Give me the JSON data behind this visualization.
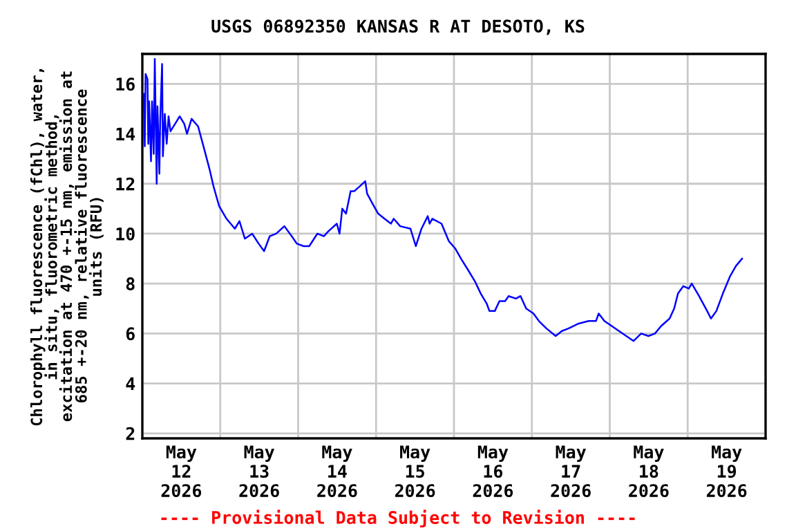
{
  "chart_data": {
    "type": "line",
    "title": "USGS 06892350 KANSAS R AT DESOTO, KS",
    "ylabel": "Chlorophyll fluorescence (fChl), water,\nin situ, fluorometric method,\nexcitation at 470 +-15 nm, emission at\n685 +-20 nm, relative fluorescence\nunits (RFU)",
    "annotations": [
      "---- Provisional Data Subject to Revision ----"
    ],
    "xlim": [
      "2026-05-12T00:00",
      "2026-05-20T00:00"
    ],
    "ylim": [
      1.8,
      17.2
    ],
    "yticks": [
      2,
      4,
      6,
      8,
      10,
      12,
      14,
      16
    ],
    "xticks": [
      {
        "value": "2026-05-12T00:00",
        "label": null
      },
      {
        "value": "2026-05-12T12:00",
        "label": "May\n12\n2026"
      },
      {
        "value": "2026-05-13T00:00",
        "label": null
      },
      {
        "value": "2026-05-13T12:00",
        "label": "May\n13\n2026"
      },
      {
        "value": "2026-05-14T00:00",
        "label": null
      },
      {
        "value": "2026-05-14T12:00",
        "label": "May\n14\n2026"
      },
      {
        "value": "2026-05-15T00:00",
        "label": null
      },
      {
        "value": "2026-05-15T12:00",
        "label": "May\n15\n2026"
      },
      {
        "value": "2026-05-16T00:00",
        "label": null
      },
      {
        "value": "2026-05-16T12:00",
        "label": "May\n16\n2026"
      },
      {
        "value": "2026-05-17T00:00",
        "label": null
      },
      {
        "value": "2026-05-17T12:00",
        "label": "May\n17\n2026"
      },
      {
        "value": "2026-05-18T00:00",
        "label": null
      },
      {
        "value": "2026-05-18T12:00",
        "label": "May\n18\n2026"
      },
      {
        "value": "2026-05-19T00:00",
        "label": null
      },
      {
        "value": "2026-05-19T12:00",
        "label": "May\n19\n2026"
      },
      {
        "value": "2026-05-20T00:00",
        "label": null
      }
    ],
    "grid": true,
    "series": [
      {
        "color": "#0000ff",
        "x": [
          "2026-05-12T00:25",
          "2026-05-12T00:45",
          "2026-05-12T01:00",
          "2026-05-12T01:35",
          "2026-05-12T01:50",
          "2026-05-12T02:05",
          "2026-05-12T02:40",
          "2026-05-12T03:00",
          "2026-05-12T03:30",
          "2026-05-12T03:50",
          "2026-05-12T04:25",
          "2026-05-12T04:40",
          "2026-05-12T05:15",
          "2026-05-12T05:30",
          "2026-05-12T06:05",
          "2026-05-12T06:20",
          "2026-05-12T06:55",
          "2026-05-12T07:30",
          "2026-05-12T08:05",
          "2026-05-12T08:40",
          "2026-05-12T10:05",
          "2026-05-12T11:30",
          "2026-05-12T12:55",
          "2026-05-12T13:45",
          "2026-05-12T15:10",
          "2026-05-12T17:10",
          "2026-05-12T18:50",
          "2026-05-12T20:40",
          "2026-05-12T21:55",
          "2026-05-12T23:40",
          "2026-05-13T01:55",
          "2026-05-13T04:30",
          "2026-05-13T05:55",
          "2026-05-13T07:35",
          "2026-05-13T09:50",
          "2026-05-13T11:50",
          "2026-05-13T13:30",
          "2026-05-13T15:15",
          "2026-05-13T17:15",
          "2026-05-13T19:45",
          "2026-05-13T22:00",
          "2026-05-13T23:35",
          "2026-05-14T01:40",
          "2026-05-14T03:25",
          "2026-05-14T05:55",
          "2026-05-14T07:55",
          "2026-05-14T09:20",
          "2026-05-14T11:55",
          "2026-05-14T12:45",
          "2026-05-14T13:35",
          "2026-05-14T14:45",
          "2026-05-14T16:10",
          "2026-05-14T17:15",
          "2026-05-14T19:00",
          "2026-05-14T20:40",
          "2026-05-14T21:15",
          "2026-05-14T22:55",
          "2026-05-15T00:40",
          "2026-05-15T02:35",
          "2026-05-15T04:35",
          "2026-05-15T05:25",
          "2026-05-15T07:25",
          "2026-05-15T10:35",
          "2026-05-15T12:15",
          "2026-05-15T14:00",
          "2026-05-15T15:55",
          "2026-05-15T16:30",
          "2026-05-15T17:20",
          "2026-05-15T20:10",
          "2026-05-15T22:25",
          "2026-05-16T00:25",
          "2026-05-16T02:10",
          "2026-05-16T04:05",
          "2026-05-16T06:25",
          "2026-05-16T08:15",
          "2026-05-16T10:05",
          "2026-05-16T10:55",
          "2026-05-16T12:35",
          "2026-05-16T14:00",
          "2026-05-16T15:45",
          "2026-05-16T16:50",
          "2026-05-16T19:05",
          "2026-05-16T20:30",
          "2026-05-16T22:15",
          "2026-05-17T00:30",
          "2026-05-17T02:10",
          "2026-05-17T04:30",
          "2026-05-17T07:20",
          "2026-05-17T09:15",
          "2026-05-17T11:15",
          "2026-05-17T14:25",
          "2026-05-17T17:30",
          "2026-05-17T19:45",
          "2026-05-17T20:35",
          "2026-05-17T22:20",
          "2026-05-18T00:35",
          "2026-05-18T02:50",
          "2026-05-18T05:05",
          "2026-05-18T07:20",
          "2026-05-18T09:40",
          "2026-05-18T11:55",
          "2026-05-18T13:55",
          "2026-05-18T15:50",
          "2026-05-18T18:25",
          "2026-05-18T19:50",
          "2026-05-18T21:00",
          "2026-05-18T22:40",
          "2026-05-19T00:20",
          "2026-05-19T01:15",
          "2026-05-19T03:30",
          "2026-05-19T06:00",
          "2026-05-19T07:10",
          "2026-05-19T08:50",
          "2026-05-19T10:50",
          "2026-05-19T13:05",
          "2026-05-19T14:50",
          "2026-05-19T16:45"
        ],
        "values": [
          15.6,
          13.5,
          16.4,
          16.2,
          13.6,
          15.3,
          12.9,
          15.3,
          13.2,
          17.0,
          12.0,
          15.1,
          12.4,
          14.5,
          16.8,
          13.1,
          14.8,
          13.6,
          14.7,
          14.1,
          14.4,
          14.7,
          14.4,
          14.0,
          14.6,
          14.3,
          13.5,
          12.6,
          11.9,
          11.1,
          10.6,
          10.2,
          10.5,
          9.8,
          10.0,
          9.6,
          9.3,
          9.9,
          10.0,
          10.3,
          9.9,
          9.6,
          9.5,
          9.5,
          10.0,
          9.9,
          10.1,
          10.4,
          10.0,
          11.0,
          10.8,
          11.7,
          11.7,
          11.9,
          12.1,
          11.6,
          11.2,
          10.8,
          10.6,
          10.4,
          10.6,
          10.3,
          10.2,
          9.5,
          10.2,
          10.7,
          10.4,
          10.6,
          10.4,
          9.7,
          9.4,
          9.0,
          8.6,
          8.1,
          7.6,
          7.2,
          6.9,
          6.9,
          7.3,
          7.3,
          7.5,
          7.4,
          7.5,
          7.0,
          6.8,
          6.5,
          6.2,
          5.9,
          6.1,
          6.2,
          6.4,
          6.5,
          6.5,
          6.8,
          6.5,
          6.3,
          6.1,
          5.9,
          5.7,
          6.0,
          5.9,
          6.0,
          6.3,
          6.6,
          7.0,
          7.6,
          7.9,
          7.8,
          8.0,
          7.5,
          6.9,
          6.6,
          6.9,
          7.6,
          8.3,
          8.7,
          9.0
        ]
      }
    ]
  }
}
